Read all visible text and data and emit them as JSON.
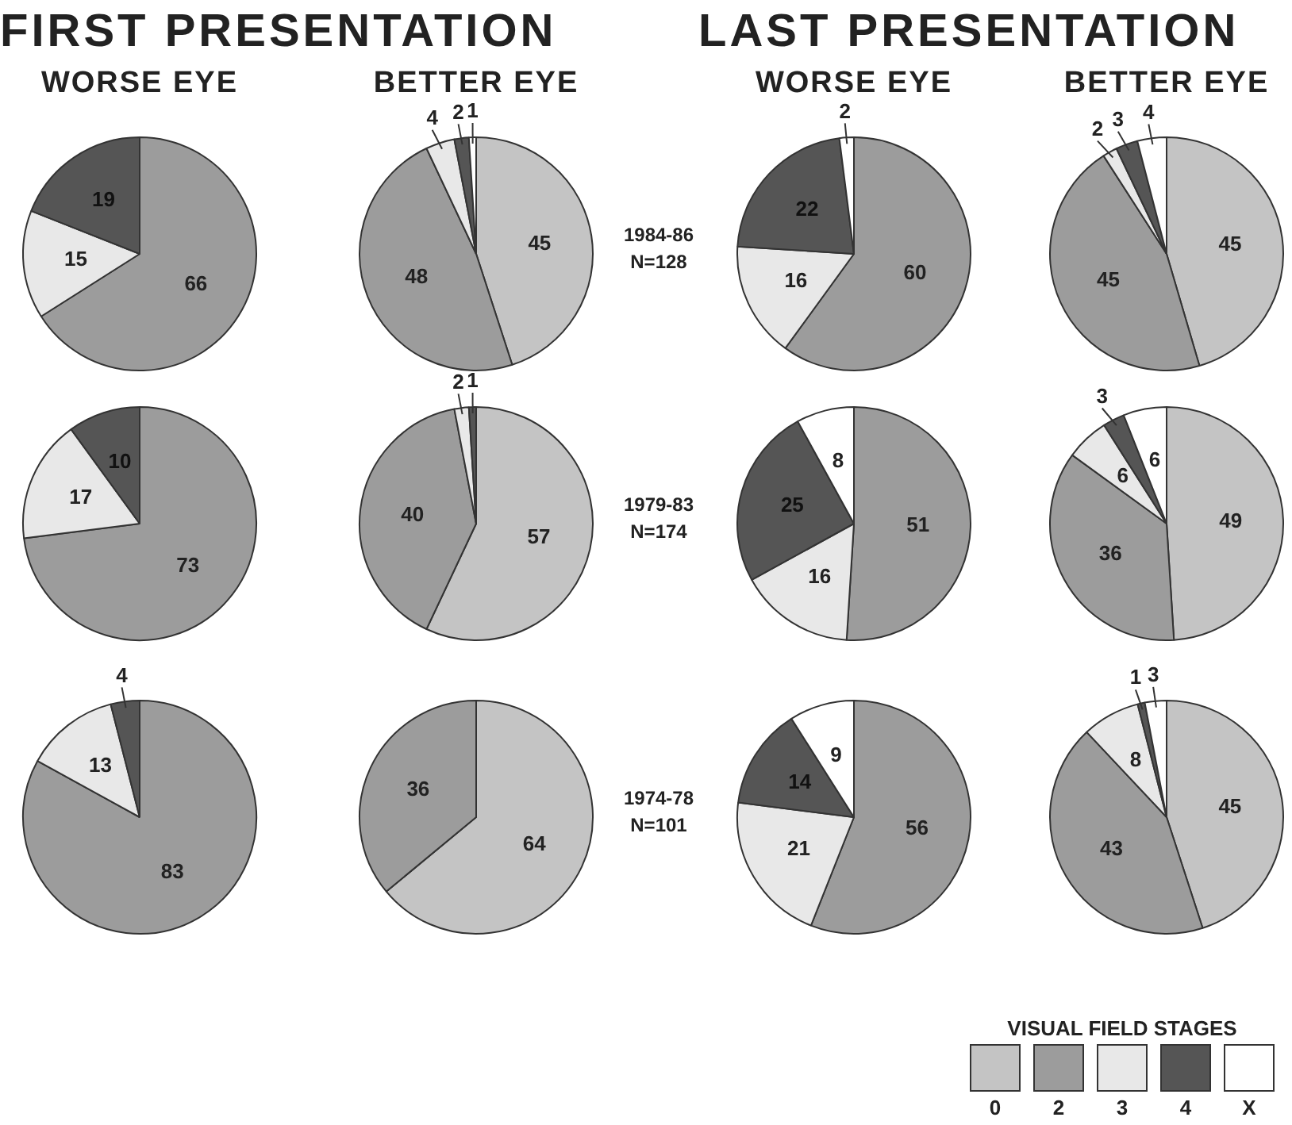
{
  "chart_data": [
    {
      "type": "pie",
      "title": "FIRST PRESENTATION",
      "subtitle": "WORSE EYE",
      "categories": [
        null,
        null,
        null,
        null,
        null
      ],
      "values": [
        null,
        66,
        15,
        19,
        null
      ],
      "colors": [
        "#c4c4c4",
        "#9c9c9c",
        "#e8e8e8",
        "#555555",
        "#ffffff"
      ],
      "data_labels": true
    },
    {
      "type": "pie",
      "subtitle": "BETTER EYE",
      "annotations": [
        "1984-86\nN=128"
      ],
      "categories": [
        null,
        null,
        null,
        null,
        null
      ],
      "values": [
        45,
        48,
        4,
        2,
        1
      ],
      "colors": [
        "#c4c4c4",
        "#9c9c9c",
        "#e8e8e8",
        "#555555",
        "#ffffff"
      ],
      "data_labels": true
    },
    {
      "type": "pie",
      "title": "LAST PRESENTATION",
      "subtitle": "WORSE EYE",
      "categories": [
        null,
        null,
        null,
        null,
        null
      ],
      "values": [
        null,
        60,
        16,
        22,
        2
      ],
      "colors": [
        "#c4c4c4",
        "#9c9c9c",
        "#e8e8e8",
        "#555555",
        "#ffffff"
      ],
      "data_labels": true
    },
    {
      "type": "pie",
      "subtitle": "BETTER EYE",
      "categories": [
        null,
        null,
        null,
        null,
        null
      ],
      "values": [
        45,
        45,
        2,
        3,
        4
      ],
      "colors": [
        "#c4c4c4",
        "#9c9c9c",
        "#e8e8e8",
        "#555555",
        "#ffffff"
      ],
      "data_labels": true
    },
    {
      "type": "pie",
      "categories": [
        null,
        null,
        null,
        null,
        null
      ],
      "values": [
        null,
        73,
        17,
        10,
        null
      ],
      "colors": [
        "#c4c4c4",
        "#9c9c9c",
        "#e8e8e8",
        "#555555",
        "#ffffff"
      ],
      "data_labels": true
    },
    {
      "type": "pie",
      "annotations": [
        "1979-83\nN=174"
      ],
      "categories": [
        null,
        null,
        null,
        null,
        null
      ],
      "values": [
        57,
        40,
        2,
        1,
        null
      ],
      "colors": [
        "#c4c4c4",
        "#9c9c9c",
        "#e8e8e8",
        "#555555",
        "#ffffff"
      ],
      "data_labels": true
    },
    {
      "type": "pie",
      "categories": [
        null,
        null,
        null,
        null,
        null
      ],
      "values": [
        null,
        51,
        16,
        25,
        8
      ],
      "colors": [
        "#c4c4c4",
        "#9c9c9c",
        "#e8e8e8",
        "#555555",
        "#ffffff"
      ],
      "data_labels": true
    },
    {
      "type": "pie",
      "categories": [
        null,
        null,
        null,
        null,
        null
      ],
      "values": [
        49,
        36,
        6,
        3,
        6
      ],
      "colors": [
        "#c4c4c4",
        "#9c9c9c",
        "#e8e8e8",
        "#555555",
        "#ffffff"
      ],
      "data_labels": true
    },
    {
      "type": "pie",
      "categories": [
        null,
        null,
        null,
        null,
        null
      ],
      "values": [
        null,
        83,
        13,
        4,
        null
      ],
      "colors": [
        "#c4c4c4",
        "#9c9c9c",
        "#e8e8e8",
        "#555555",
        "#ffffff"
      ],
      "data_labels": true
    },
    {
      "type": "pie",
      "annotations": [
        "1974-78\nN=101"
      ],
      "categories": [
        null,
        null,
        null,
        null,
        null
      ],
      "values": [
        64,
        36,
        null,
        null,
        null
      ],
      "colors": [
        "#c4c4c4",
        "#9c9c9c",
        "#e8e8e8",
        "#555555",
        "#ffffff"
      ],
      "data_labels": true
    },
    {
      "type": "pie",
      "categories": [
        null,
        null,
        null,
        null,
        null
      ],
      "values": [
        null,
        56,
        21,
        14,
        9
      ],
      "colors": [
        "#c4c4c4",
        "#9c9c9c",
        "#e8e8e8",
        "#555555",
        "#ffffff"
      ],
      "data_labels": true
    },
    {
      "type": "pie",
      "categories": [
        "0",
        "2",
        "3",
        "4",
        "X"
      ],
      "values": [
        45,
        43,
        8,
        1,
        3
      ],
      "colors": [
        "#c4c4c4",
        "#9c9c9c",
        "#e8e8e8",
        "#555555",
        "#ffffff"
      ],
      "data_labels": true,
      "legend": "bottom",
      "legend_title": "VISUAL FIELD STAGES"
    }
  ]
}
